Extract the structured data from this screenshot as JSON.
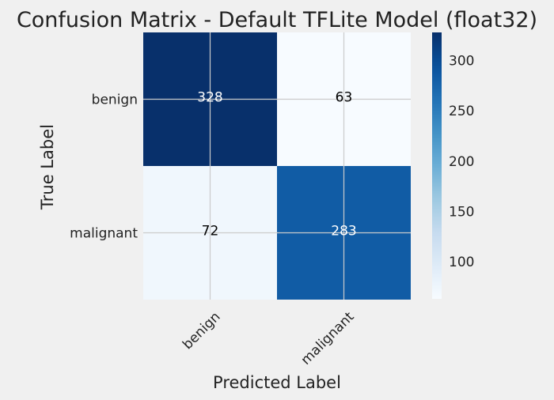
{
  "chart_data": {
    "type": "heatmap",
    "title": "Confusion Matrix - Default TFLite Model (float32)",
    "xlabel": "Predicted Label",
    "ylabel": "True Label",
    "x_categories": [
      "benign",
      "malignant"
    ],
    "y_categories": [
      "benign",
      "malignant"
    ],
    "values": [
      [
        328,
        63
      ],
      [
        72,
        283
      ]
    ],
    "colormap": "Blues",
    "colorbar": {
      "range": [
        63,
        328
      ],
      "ticks": [
        "100",
        "150",
        "200",
        "250",
        "300"
      ]
    },
    "grid": true
  },
  "colors": {
    "background": "#f0f0f0",
    "grid": "#cbcbcb",
    "text": "#222222"
  }
}
